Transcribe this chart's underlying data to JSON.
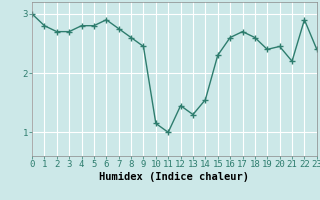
{
  "x": [
    0,
    1,
    2,
    3,
    4,
    5,
    6,
    7,
    8,
    9,
    10,
    11,
    12,
    13,
    14,
    15,
    16,
    17,
    18,
    19,
    20,
    21,
    22,
    23
  ],
  "y": [
    3.0,
    2.8,
    2.7,
    2.7,
    2.8,
    2.8,
    2.9,
    2.75,
    2.6,
    2.45,
    1.15,
    1.0,
    1.45,
    1.3,
    1.55,
    2.3,
    2.6,
    2.7,
    2.6,
    2.4,
    2.45,
    2.2,
    2.9,
    2.4
  ],
  "xlabel": "Humidex (Indice chaleur)",
  "xlim": [
    0,
    23
  ],
  "ylim": [
    0.6,
    3.2
  ],
  "yticks": [
    1,
    2,
    3
  ],
  "xticks": [
    0,
    1,
    2,
    3,
    4,
    5,
    6,
    7,
    8,
    9,
    10,
    11,
    12,
    13,
    14,
    15,
    16,
    17,
    18,
    19,
    20,
    21,
    22,
    23
  ],
  "line_color": "#2e7d6e",
  "marker": "+",
  "marker_size": 4,
  "marker_lw": 1.0,
  "line_width": 1.0,
  "bg_color": "#cce8e8",
  "grid_color": "#ffffff",
  "label_fontsize": 7.5,
  "tick_fontsize": 6.5
}
